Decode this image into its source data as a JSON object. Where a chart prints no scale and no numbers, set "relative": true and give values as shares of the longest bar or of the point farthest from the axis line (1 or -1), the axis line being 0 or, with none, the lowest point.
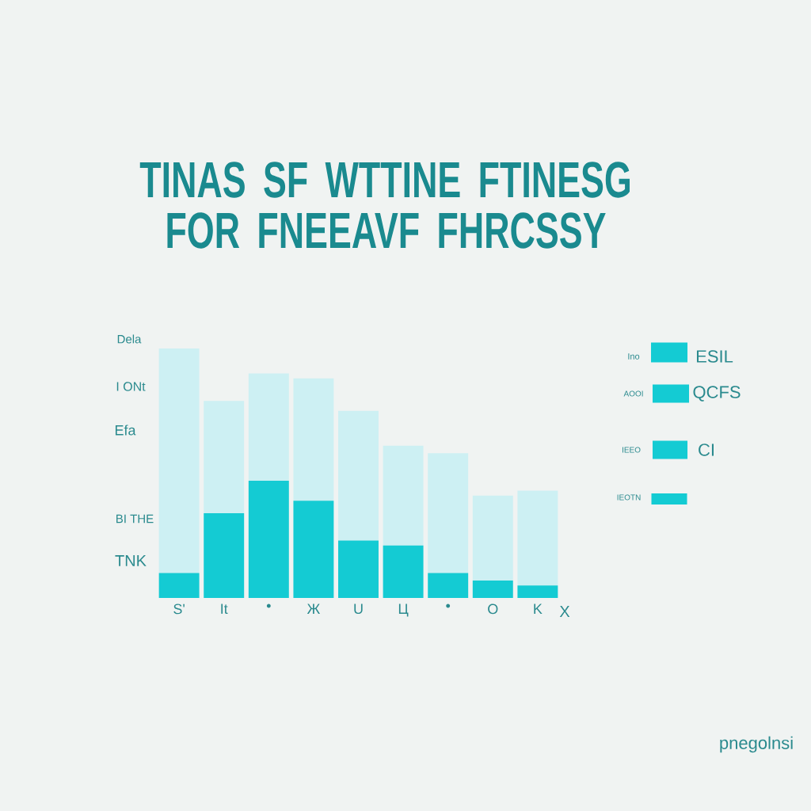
{
  "chart_data": {
    "type": "bar",
    "title": "TINAS SF WTTINE FTINESG FOR FNEEAVF FHRCSSY",
    "categories": [
      "S'",
      "It",
      "•",
      "Ж",
      "U",
      "Ц",
      "•",
      "O",
      "K"
    ],
    "stacked": true,
    "relative": true,
    "series": [
      {
        "color": "#14cbd3",
        "values": [
          0.1,
          0.34,
          0.47,
          0.39,
          0.23,
          0.21,
          0.1,
          0.07,
          0.05
        ]
      },
      {
        "color": "#cdf0f3",
        "values": [
          0.9,
          0.45,
          0.43,
          0.49,
          0.52,
          0.4,
          0.48,
          0.34,
          0.38
        ]
      }
    ],
    "annotations": [
      "Dela",
      "I ONt",
      "Efa",
      "BI THE",
      "TNK",
      "Ino",
      "ESIL",
      "AOOI",
      "QCFS",
      "IEEO",
      "CI",
      "IEOTN",
      "X",
      "pnegolnsi"
    ]
  }
}
